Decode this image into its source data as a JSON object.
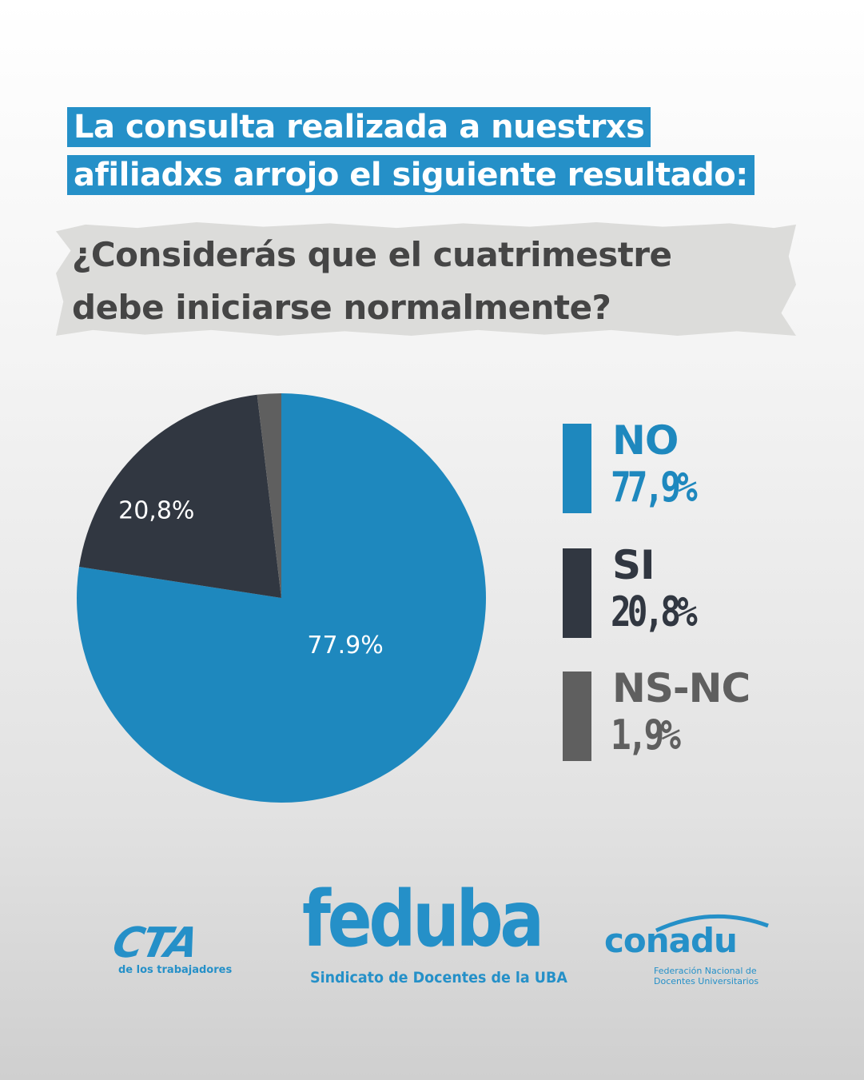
{
  "headline": {
    "line1": "La consulta realizada a nuestrxs",
    "line2": "afiliadxs arrojo el siguiente resultado:"
  },
  "question": {
    "line1": "¿Considerás que el cuatrimestre",
    "line2": "debe iniciarse normalmente?"
  },
  "colors": {
    "accent": "#2590c8",
    "dark": "#313741",
    "gray": "#616161",
    "question_text": "#454545"
  },
  "chart_data": {
    "type": "pie",
    "title": "",
    "slices": [
      {
        "name": "NO",
        "value": 77.9,
        "label": "77,9%",
        "inner_label": "77.9%",
        "color": "#1e88be",
        "legend_label": "77,9%"
      },
      {
        "name": "SI",
        "value": 20.8,
        "label": "20,8%",
        "inner_label": "20,8%",
        "color": "#313741",
        "legend_label": "20,8%"
      },
      {
        "name": "NS-NC",
        "value": 1.9,
        "label": "1,9%",
        "inner_label": "",
        "color": "#5f5f5f",
        "legend_label": "1,9%"
      }
    ],
    "start": "12 o'clock",
    "direction": "clockwise",
    "legend_position": "right"
  },
  "logos": {
    "cta": {
      "word": "CTA",
      "sub": "de los trabajadores"
    },
    "feduba": {
      "word": "feduba",
      "sub": "Sindicato de Docentes de la UBA"
    },
    "conadu": {
      "word": "conadu",
      "sub1": "Federación Nacional de",
      "sub2": "Docentes Universitarios"
    }
  }
}
